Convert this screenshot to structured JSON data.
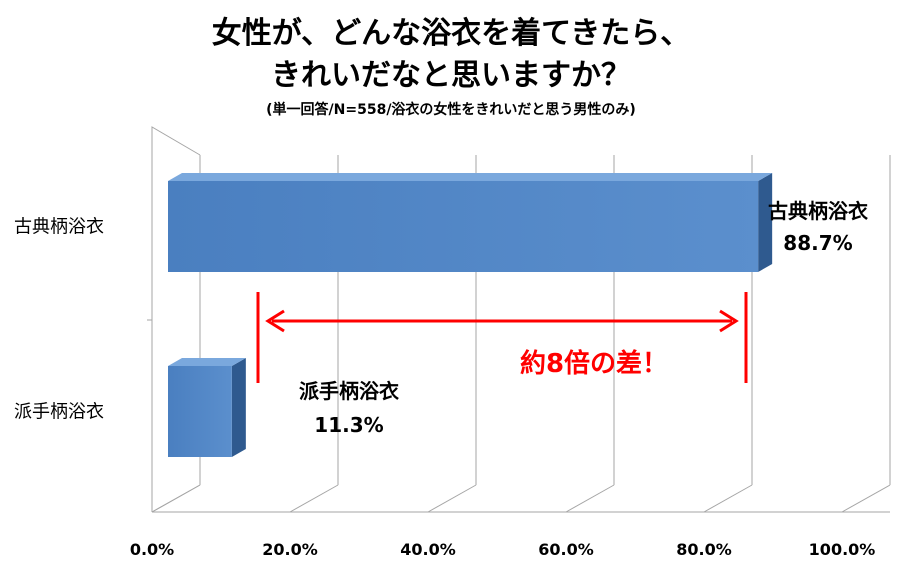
{
  "title_line1": "女性が、どんな浴衣を着てきたら、",
  "title_line2": "きれいだなと思いますか？",
  "subtitle": "(単一回答/N=558/浴衣の女性をきれいだと思う男性のみ)",
  "annotation": "約8倍の差！",
  "colors": {
    "bar_face": "#5b8fcd",
    "bar_top": "#7aa8dd",
    "bar_side": "#2f5a8f",
    "annotation": "#ff0000",
    "grid": "#a6a6a6"
  },
  "chart_data": {
    "type": "bar",
    "orientation": "horizontal",
    "categories": [
      "古典柄浴衣",
      "派手柄浴衣"
    ],
    "values": [
      88.7,
      11.3
    ],
    "data_labels": [
      {
        "name": "古典柄浴衣",
        "value": "88.7%"
      },
      {
        "name": "派手柄浴衣",
        "value": "11.3%"
      }
    ],
    "xlim": [
      0,
      100
    ],
    "xticks": [
      "0.0%",
      "20.0%",
      "40.0%",
      "60.0%",
      "80.0%",
      "100.0%"
    ],
    "grid": true,
    "legend": "none"
  }
}
